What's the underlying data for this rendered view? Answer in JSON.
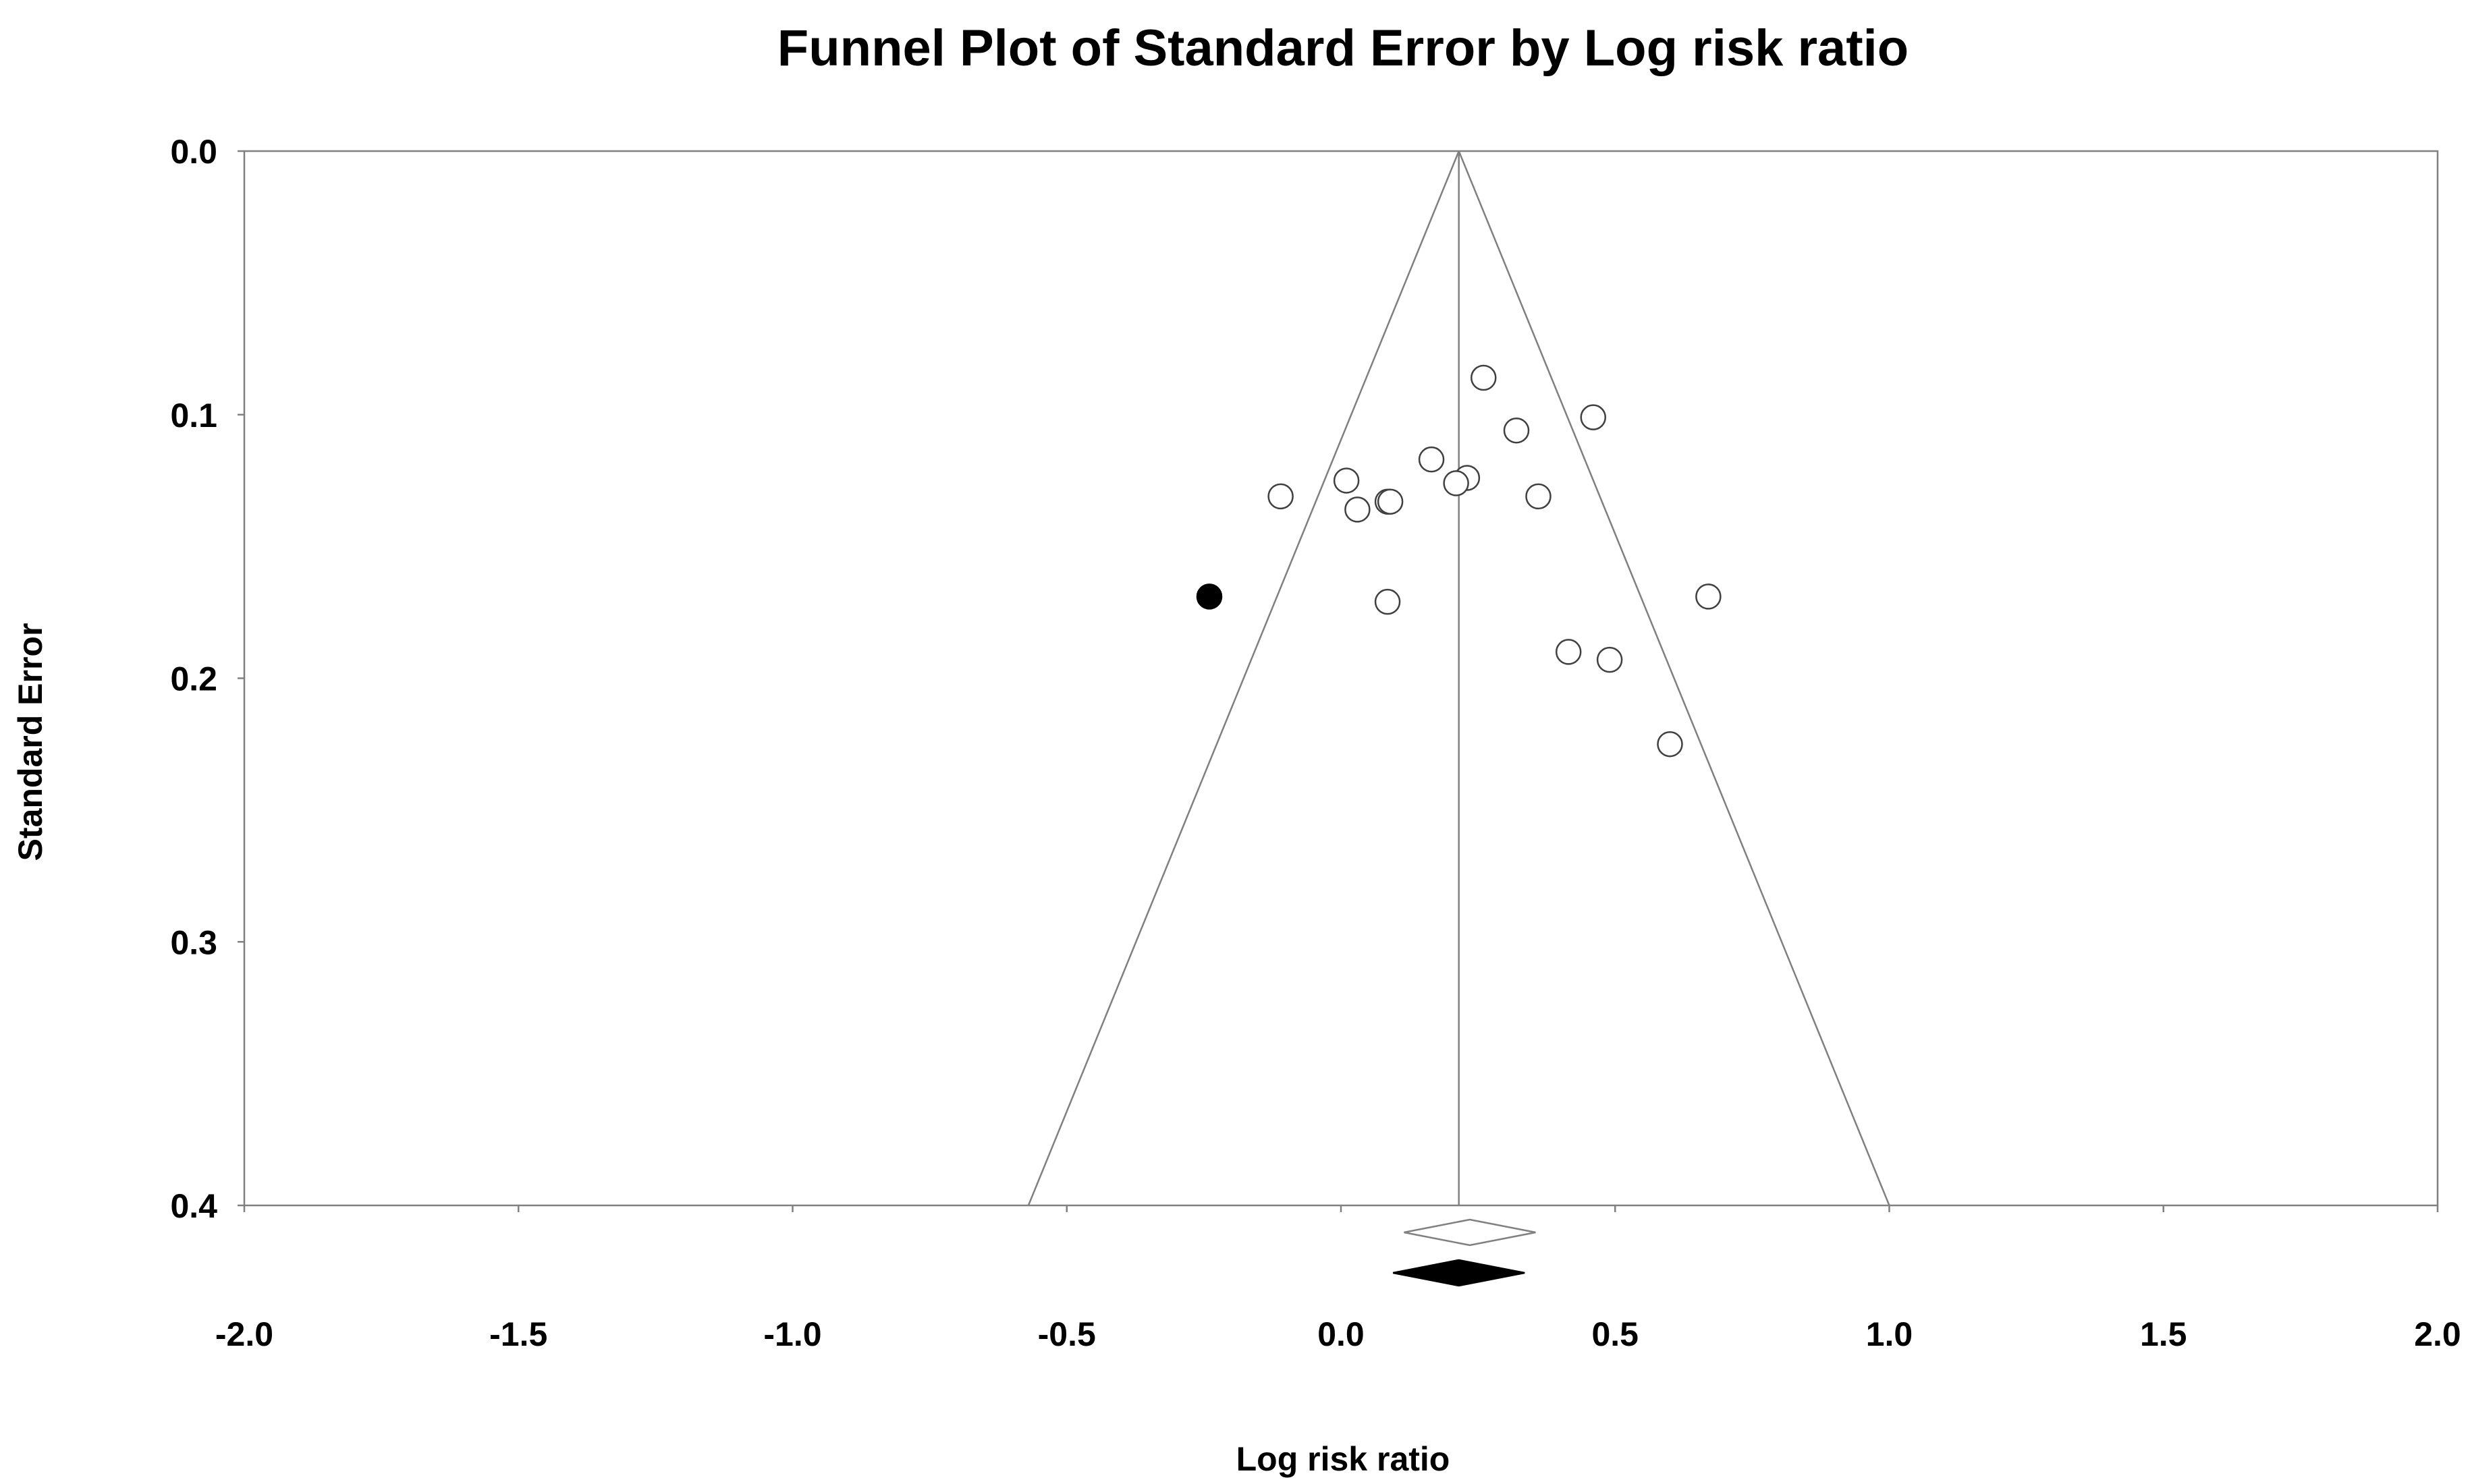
{
  "chart_data": {
    "type": "scatter",
    "title": "Funnel Plot of Standard Error by Log risk ratio",
    "xlabel": "Log risk ratio",
    "ylabel": "Standard Error",
    "xlim": [
      -2.0,
      2.0
    ],
    "ylim": [
      0.0,
      0.4
    ],
    "y_inverted": true,
    "x_ticks": [
      "-2.0",
      "-1.5",
      "-1.0",
      "-0.5",
      "0.0",
      "0.5",
      "1.0",
      "1.5",
      "2.0"
    ],
    "y_ticks": [
      "0.0",
      "0.1",
      "0.2",
      "0.3",
      "0.4"
    ],
    "grid": false,
    "summary_effect": 0.215,
    "funnel_limits_at_se_0.4": [
      -0.57,
      1.0
    ],
    "observed_studies": [
      {
        "x": 0.26,
        "y": 0.086
      },
      {
        "x": 0.46,
        "y": 0.101
      },
      {
        "x": 0.32,
        "y": 0.106
      },
      {
        "x": 0.165,
        "y": 0.117
      },
      {
        "x": 0.01,
        "y": 0.125
      },
      {
        "x": 0.23,
        "y": 0.124
      },
      {
        "x": 0.21,
        "y": 0.126
      },
      {
        "x": -0.11,
        "y": 0.131
      },
      {
        "x": 0.36,
        "y": 0.131
      },
      {
        "x": 0.085,
        "y": 0.133
      },
      {
        "x": 0.09,
        "y": 0.133
      },
      {
        "x": 0.03,
        "y": 0.136
      },
      {
        "x": 0.085,
        "y": 0.171
      },
      {
        "x": 0.67,
        "y": 0.169
      },
      {
        "x": 0.415,
        "y": 0.19
      },
      {
        "x": 0.49,
        "y": 0.193
      },
      {
        "x": 0.6,
        "y": 0.225
      }
    ],
    "imputed_studies": [
      {
        "x": -0.24,
        "y": 0.169
      }
    ],
    "observed_summary": {
      "x": 0.235,
      "width": 0.12
    },
    "adjusted_summary": {
      "x": 0.215,
      "width": 0.12
    },
    "colors": {
      "frame": "#808080",
      "observed_marker": "#ffffff",
      "imputed_marker": "#000000",
      "text": "#000000"
    }
  }
}
